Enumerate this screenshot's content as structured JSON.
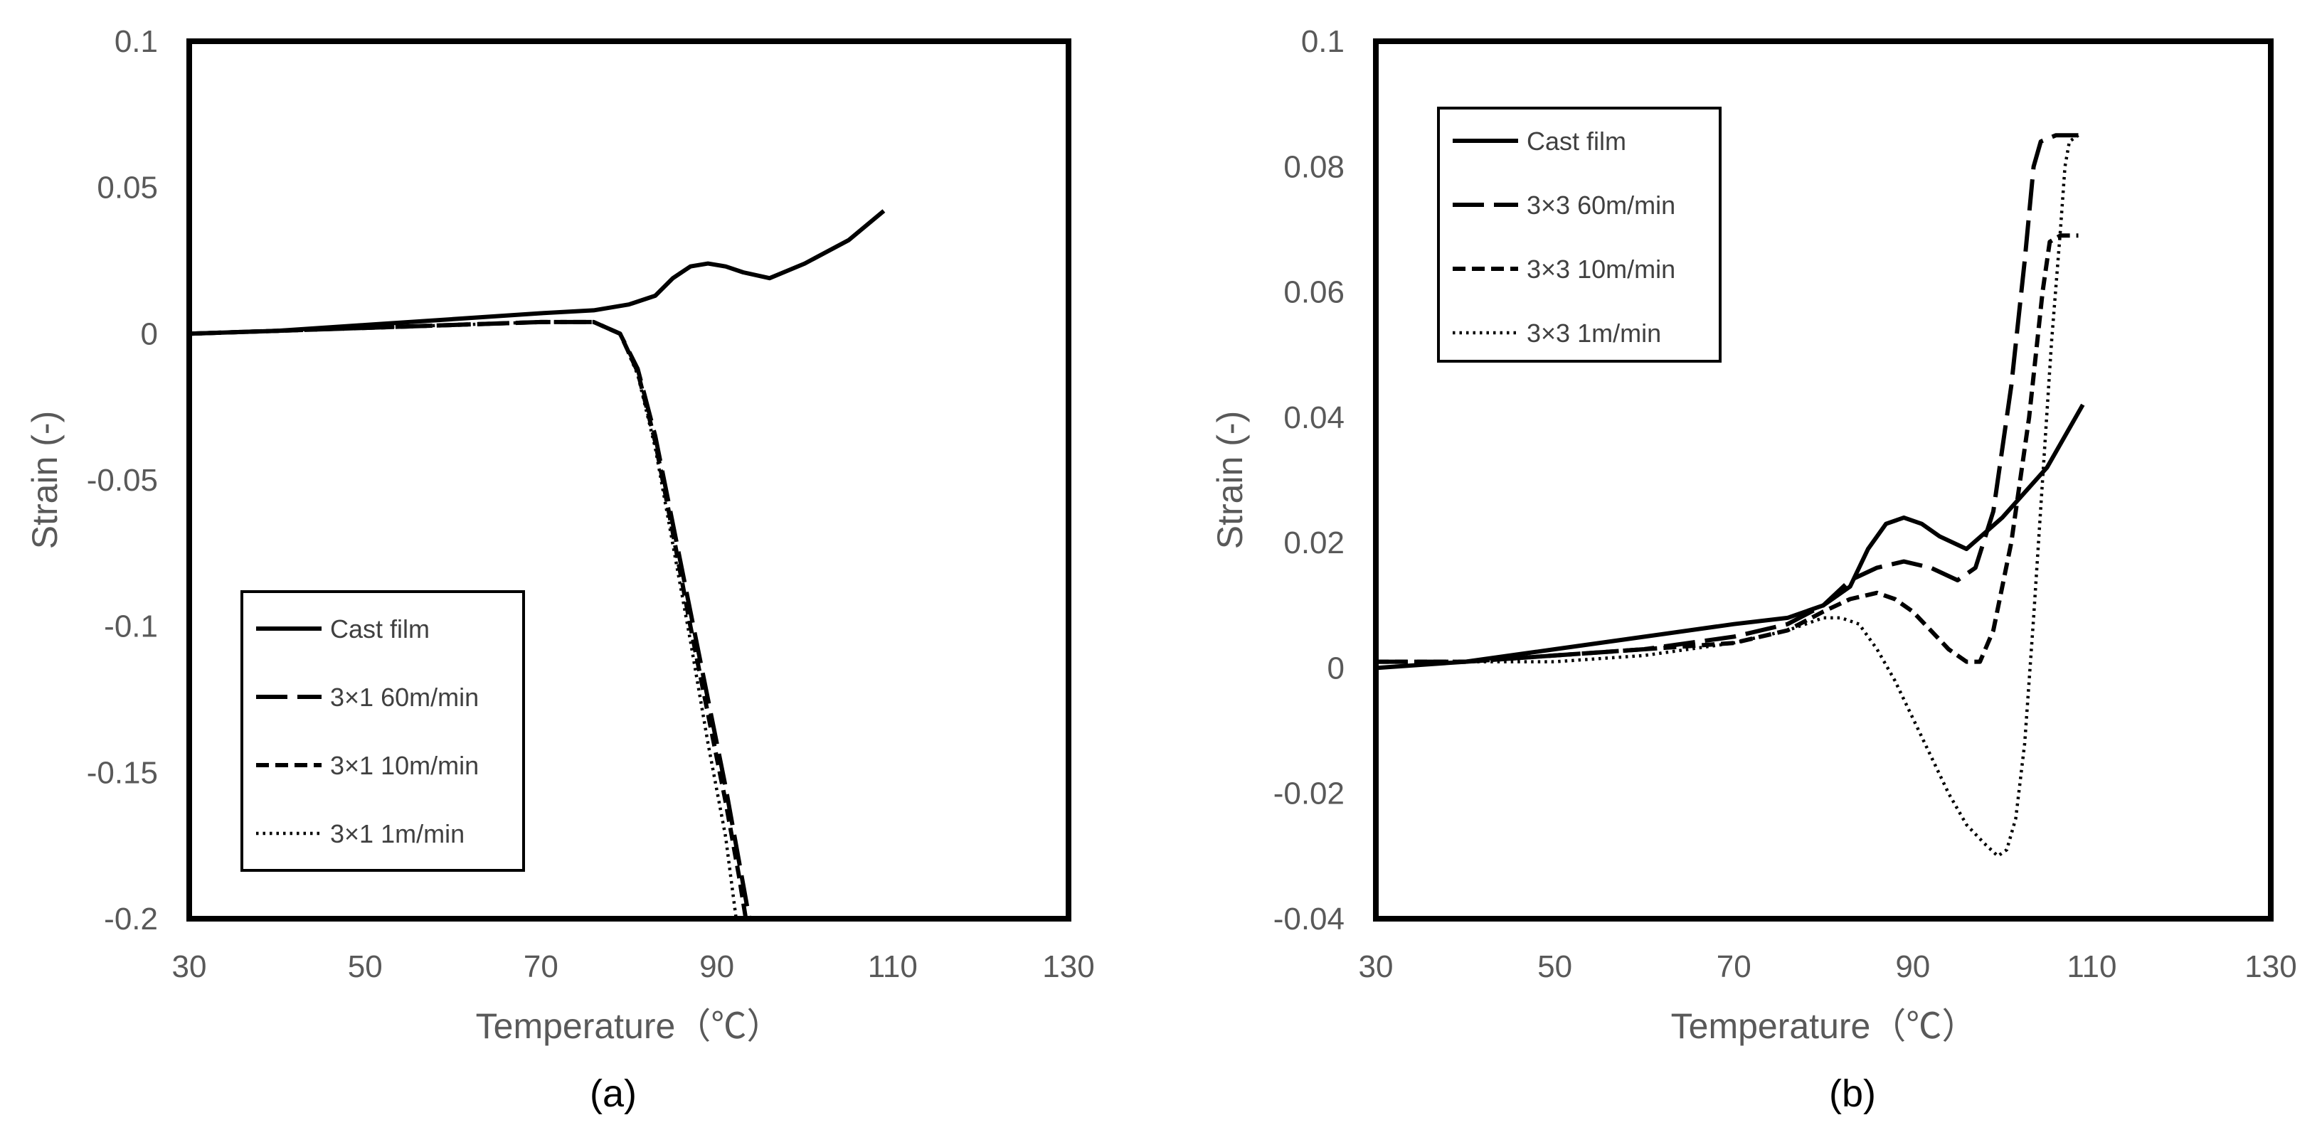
{
  "chart_data": [
    {
      "type": "line",
      "panel_label": "(a)",
      "xlabel": "Temperature（℃）",
      "ylabel": "Strain (-)",
      "xlim": [
        30,
        130
      ],
      "ylim": [
        -0.2,
        0.1
      ],
      "xticks": [
        "30",
        "50",
        "70",
        "90",
        "110",
        "130"
      ],
      "yticks": [
        "0.1",
        "0.05",
        "0",
        "-0.05",
        "-0.1",
        "-0.15",
        "-0.2"
      ],
      "legend_position": "bottom-left",
      "series": [
        {
          "name": "Cast film",
          "style": "solid",
          "x": [
            30,
            40,
            50,
            60,
            70,
            76,
            80,
            83,
            85,
            87,
            89,
            91,
            93,
            96,
            100,
            105,
            109
          ],
          "y": [
            0,
            0.001,
            0.003,
            0.005,
            0.007,
            0.008,
            0.01,
            0.013,
            0.019,
            0.023,
            0.024,
            0.023,
            0.021,
            0.019,
            0.024,
            0.032,
            0.042
          ]
        },
        {
          "name": "3×1 60m/min",
          "style": "long-dash",
          "x": [
            30,
            40,
            50,
            60,
            70,
            76,
            79,
            81,
            83,
            85,
            87,
            89,
            91,
            92.5,
            93.7
          ],
          "y": [
            0,
            0.001,
            0.002,
            0.003,
            0.004,
            0.004,
            0.0,
            -0.012,
            -0.035,
            -0.065,
            -0.095,
            -0.125,
            -0.155,
            -0.18,
            -0.2
          ]
        },
        {
          "name": "3×1 10m/min",
          "style": "short-dash",
          "x": [
            30,
            40,
            50,
            60,
            70,
            76,
            79,
            81,
            83,
            85,
            87,
            89,
            91,
            92.5,
            93.3
          ],
          "y": [
            0,
            0.001,
            0.002,
            0.003,
            0.004,
            0.004,
            0.0,
            -0.013,
            -0.037,
            -0.068,
            -0.1,
            -0.13,
            -0.16,
            -0.185,
            -0.2
          ]
        },
        {
          "name": "3×1 1m/min",
          "style": "dotted",
          "x": [
            30,
            40,
            50,
            60,
            70,
            76,
            79,
            81,
            83,
            85,
            87,
            89,
            91,
            92.2
          ],
          "y": [
            0,
            0.001,
            0.002,
            0.003,
            0.004,
            0.004,
            0.0,
            -0.014,
            -0.039,
            -0.072,
            -0.105,
            -0.14,
            -0.172,
            -0.2
          ]
        }
      ]
    },
    {
      "type": "line",
      "panel_label": "(b)",
      "xlabel": "Temperature（℃）",
      "ylabel": "Strain (-)",
      "xlim": [
        30,
        130
      ],
      "ylim": [
        -0.04,
        0.1
      ],
      "xticks": [
        "30",
        "50",
        "70",
        "90",
        "110",
        "130"
      ],
      "yticks": [
        "0.1",
        "0.08",
        "0.06",
        "0.04",
        "0.02",
        "0",
        "-0.02",
        "-0.04"
      ],
      "legend_position": "top-left",
      "series": [
        {
          "name": "Cast film",
          "style": "solid",
          "x": [
            30,
            40,
            50,
            60,
            70,
            76,
            80,
            83,
            85,
            87,
            89,
            91,
            93,
            96,
            100,
            105,
            109
          ],
          "y": [
            0,
            0.001,
            0.003,
            0.005,
            0.007,
            0.008,
            0.01,
            0.013,
            0.019,
            0.023,
            0.024,
            0.023,
            0.021,
            0.019,
            0.024,
            0.032,
            0.042
          ]
        },
        {
          "name": "3×3 60m/min",
          "style": "long-dash",
          "x": [
            30,
            40,
            50,
            60,
            70,
            76,
            80,
            83,
            86,
            89,
            92,
            95,
            97,
            99,
            101,
            102.5,
            103.5,
            104.3,
            106,
            108.5
          ],
          "y": [
            0.001,
            0.001,
            0.002,
            0.003,
            0.005,
            0.007,
            0.01,
            0.014,
            0.016,
            0.017,
            0.016,
            0.014,
            0.016,
            0.025,
            0.045,
            0.065,
            0.08,
            0.084,
            0.085,
            0.085
          ]
        },
        {
          "name": "3×3 10m/min",
          "style": "short-dash",
          "x": [
            30,
            40,
            50,
            60,
            70,
            76,
            80,
            83,
            86,
            88,
            90,
            92,
            94,
            96,
            97.5,
            99,
            101,
            103,
            104.5,
            105.3,
            106.5,
            108.5
          ],
          "y": [
            0.001,
            0.001,
            0.002,
            0.003,
            0.004,
            0.006,
            0.009,
            0.011,
            0.012,
            0.011,
            0.009,
            0.006,
            0.003,
            0.001,
            0.001,
            0.006,
            0.02,
            0.04,
            0.06,
            0.068,
            0.069,
            0.069
          ]
        },
        {
          "name": "3×3 1m/min",
          "style": "dotted",
          "x": [
            30,
            40,
            50,
            60,
            70,
            76,
            80,
            82,
            84,
            86,
            88,
            90,
            92,
            94,
            96,
            98,
            99.5,
            100.5,
            101.5,
            102.5,
            103.5,
            104.5,
            105.5,
            106.5,
            107,
            107.5,
            108.5
          ],
          "y": [
            0,
            0.001,
            0.001,
            0.002,
            0.004,
            0.006,
            0.008,
            0.008,
            0.007,
            0.003,
            -0.002,
            -0.008,
            -0.014,
            -0.02,
            -0.025,
            -0.028,
            -0.03,
            -0.029,
            -0.024,
            -0.012,
            0.008,
            0.03,
            0.052,
            0.07,
            0.08,
            0.084,
            0.085
          ]
        }
      ]
    }
  ]
}
